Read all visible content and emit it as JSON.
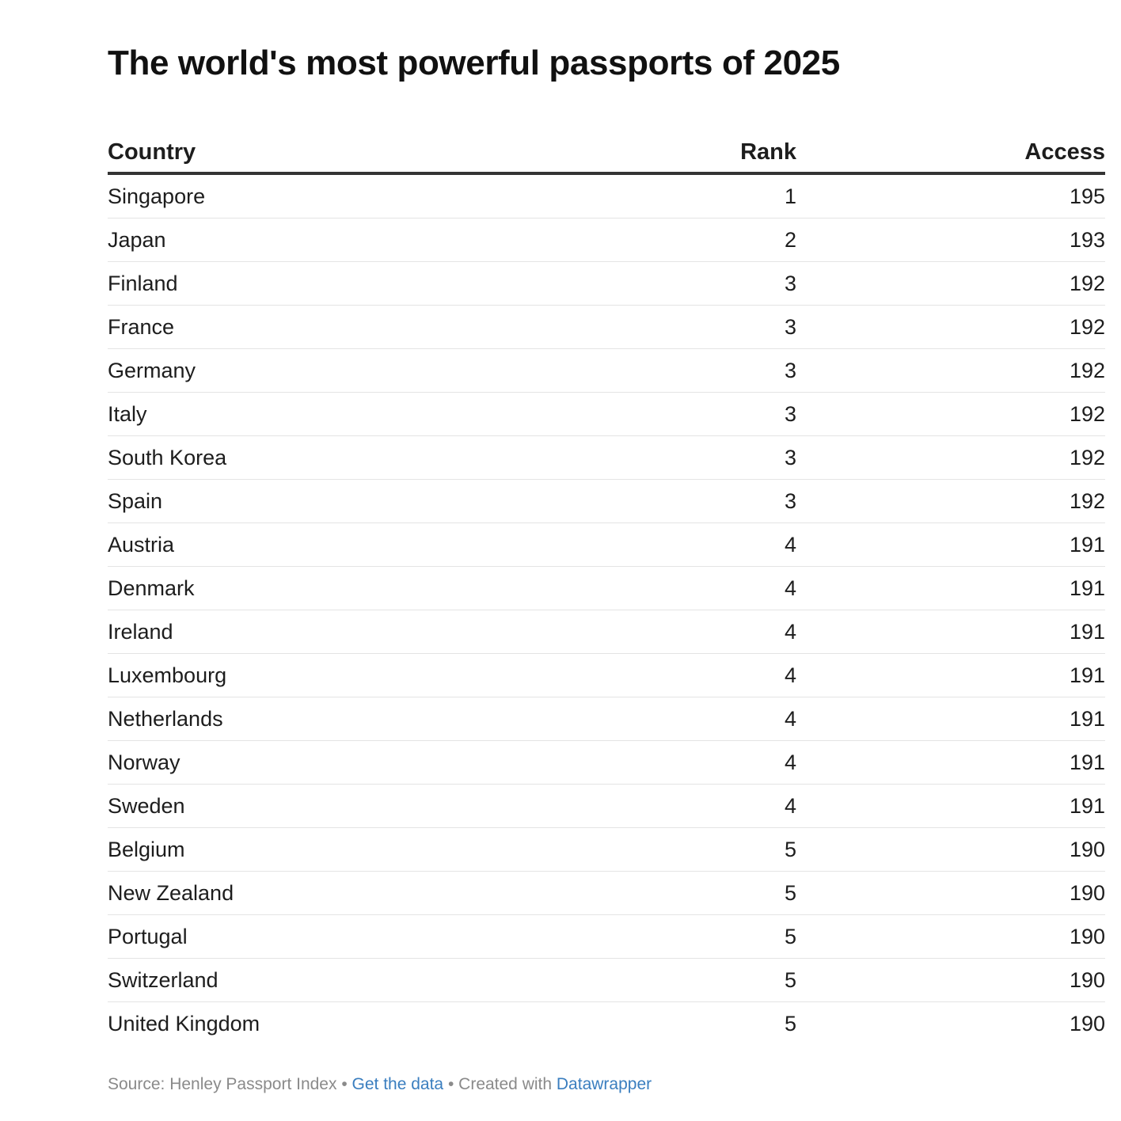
{
  "chart_data": {
    "type": "table",
    "title": "The world's most powerful passports of 2025",
    "columns": [
      "Country",
      "Rank",
      "Access"
    ],
    "rows": [
      [
        "Singapore",
        "1",
        "195"
      ],
      [
        "Japan",
        "2",
        "193"
      ],
      [
        "Finland",
        "3",
        "192"
      ],
      [
        "France",
        "3",
        "192"
      ],
      [
        "Germany",
        "3",
        "192"
      ],
      [
        "Italy",
        "3",
        "192"
      ],
      [
        "South Korea",
        "3",
        "192"
      ],
      [
        "Spain",
        "3",
        "192"
      ],
      [
        "Austria",
        "4",
        "191"
      ],
      [
        "Denmark",
        "4",
        "191"
      ],
      [
        "Ireland",
        "4",
        "191"
      ],
      [
        "Luxembourg",
        "4",
        "191"
      ],
      [
        "Netherlands",
        "4",
        "191"
      ],
      [
        "Norway",
        "4",
        "191"
      ],
      [
        "Sweden",
        "4",
        "191"
      ],
      [
        "Belgium",
        "5",
        "190"
      ],
      [
        "New Zealand",
        "5",
        "190"
      ],
      [
        "Portugal",
        "5",
        "190"
      ],
      [
        "Switzerland",
        "5",
        "190"
      ],
      [
        "United Kingdom",
        "5",
        "190"
      ]
    ]
  },
  "footer": {
    "source_text": "Source: Henley Passport Index",
    "separator": " • ",
    "get_data_label": "Get the data",
    "created_with_text": "Created with",
    "datawrapper_label": "Datawrapper"
  },
  "colors": {
    "link": "#3a7ebf",
    "footer_text": "#8a8a8a",
    "header_rule": "#333333",
    "row_rule": "#e4e4e4"
  }
}
